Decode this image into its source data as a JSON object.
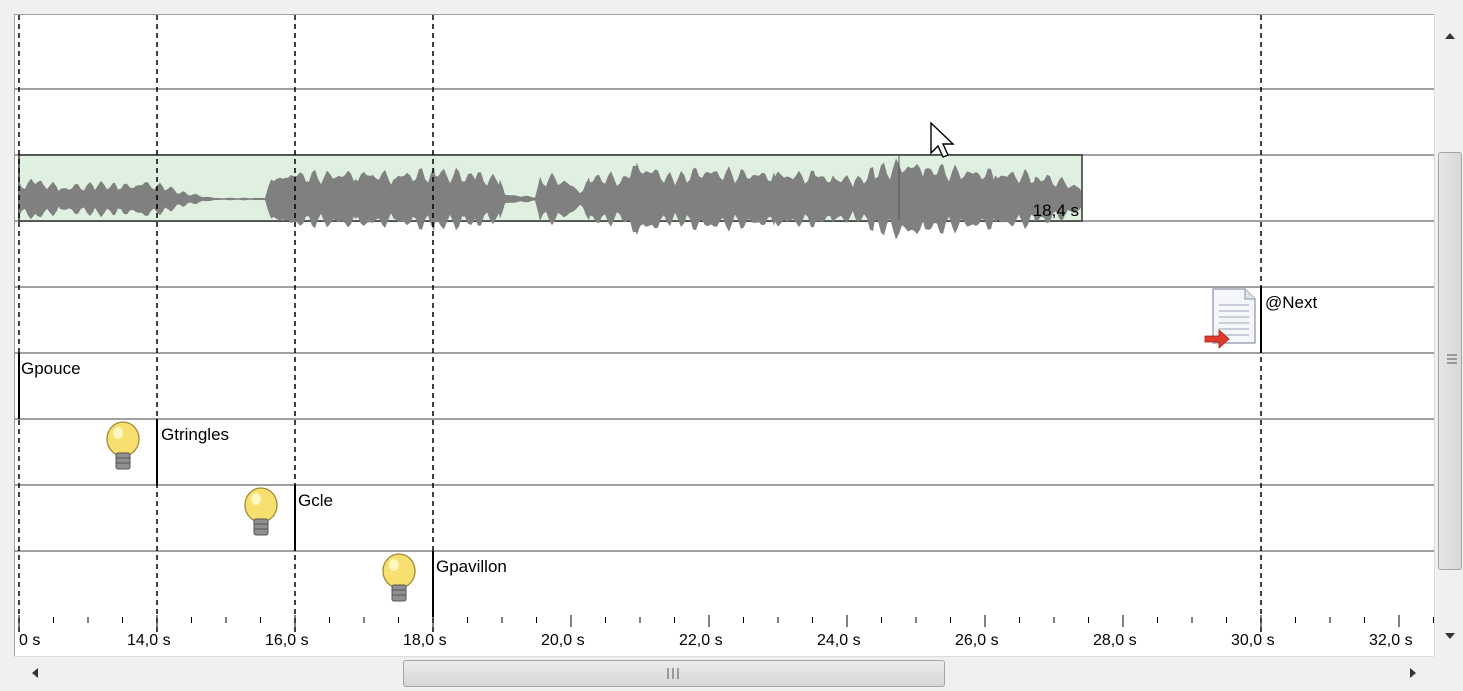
{
  "timeline": {
    "audio_clip": {
      "duration_label": "18,4 s"
    },
    "cues": [
      {
        "label": "@Next",
        "icon": "document-arrow-icon"
      },
      {
        "label": "Gpouce",
        "icon": ""
      },
      {
        "label": "Gtringles",
        "icon": "lightbulb-icon"
      },
      {
        "label": "Gcle",
        "icon": "lightbulb-icon"
      },
      {
        "label": "Gpavillon",
        "icon": "lightbulb-icon"
      }
    ],
    "ruler": {
      "tick_labels": [
        "0 s",
        "14,0 s",
        "16,0 s",
        "18,0 s",
        "20,0 s",
        "22,0 s",
        "24,0 s",
        "26,0 s",
        "28,0 s",
        "30,0 s",
        "32,0 s"
      ]
    }
  },
  "colors": {
    "clip_fill": "#dff0e0",
    "waveform": "#808080",
    "row_line": "#a0a0a0",
    "bulb": "#f5d84a"
  }
}
